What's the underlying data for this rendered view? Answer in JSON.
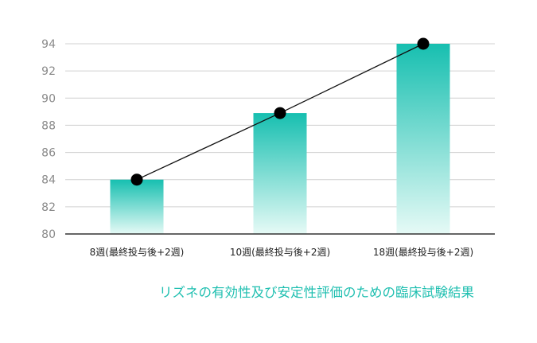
{
  "chart_data": {
    "type": "bar",
    "title": "",
    "xlabel": "",
    "ylabel": "",
    "categories": [
      "8週(最終投与後+2週)",
      "10週(最終投与後+2週)",
      "18週(最終投与後+2週)"
    ],
    "values": [
      84,
      88.9,
      94
    ],
    "line_values": [
      84,
      88.9,
      94
    ],
    "ylim": [
      80,
      94
    ],
    "yticks": [
      80,
      82,
      84,
      86,
      88,
      90,
      92,
      94
    ],
    "grid": true,
    "caption": "リズネの有効性及び安定性評価のための臨床試験結果",
    "colors": {
      "bar_top": "#17bfb0",
      "bar_bottom": "#e6faf6",
      "line": "#111111",
      "marker": "#000000",
      "grid": "#d0d0d0",
      "axis": "#333333"
    }
  }
}
